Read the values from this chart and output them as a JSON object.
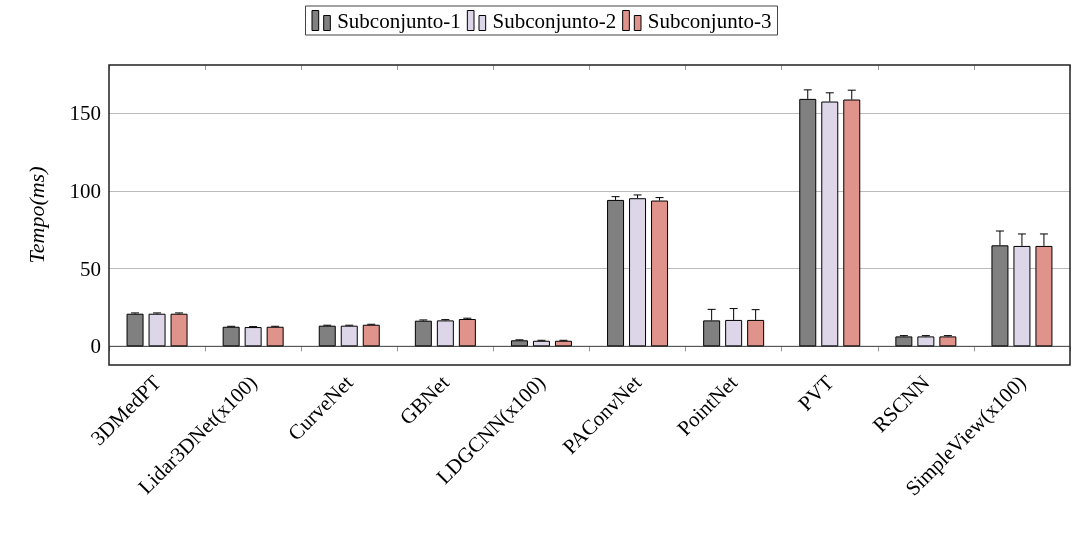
{
  "chart_data": {
    "type": "bar",
    "ylabel": "Tempo(ms)",
    "categories": [
      "3DMedPT",
      "Lidar3DNet(x100)",
      "CurveNet",
      "GBNet",
      "LDGCNN(x100)",
      "PAConvNet",
      "PointNet",
      "PVT",
      "RSCNN",
      "SimpleView(x100)"
    ],
    "series": [
      {
        "name": "Subconjunto-1",
        "color": "#808080",
        "values": [
          21.0,
          12.6,
          13.3,
          16.5,
          3.9,
          94.2,
          16.7,
          159.2,
          6.4,
          65.0
        ],
        "errors": [
          0.5,
          0.3,
          0.3,
          0.5,
          0.3,
          2.1,
          7.1,
          5.8,
          0.5,
          9.2
        ]
      },
      {
        "name": "Subconjunto-2",
        "color": "#dcd6e8",
        "values": [
          21.0,
          12.4,
          13.3,
          16.7,
          3.6,
          95.3,
          17.0,
          157.5,
          6.4,
          64.6
        ],
        "errors": [
          0.5,
          0.3,
          0.3,
          0.5,
          0.3,
          2.1,
          7.3,
          5.6,
          0.5,
          7.7
        ]
      },
      {
        "name": "Subconjunto-3",
        "color": "#e0938b",
        "values": [
          21.0,
          12.6,
          13.9,
          17.6,
          3.6,
          93.8,
          17.0,
          158.8,
          6.4,
          64.6
        ],
        "errors": [
          0.5,
          0.3,
          0.3,
          0.5,
          0.3,
          1.9,
          6.6,
          6.0,
          0.5,
          7.7
        ]
      }
    ],
    "ylim": [
      -12,
      181
    ],
    "yticks": [
      0,
      50,
      100,
      150
    ],
    "grid": "y",
    "legend": "top"
  }
}
